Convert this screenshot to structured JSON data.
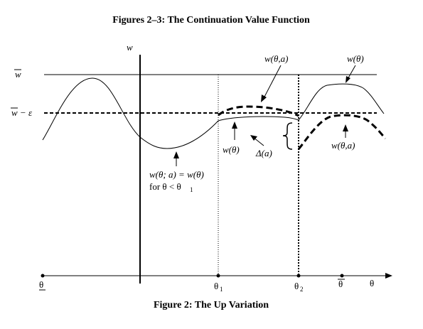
{
  "title": "Figures 2–3:  The Continuation Value Function",
  "caption": "Figure 2:  The Up Variation",
  "axes": {
    "y_axis_label": "w",
    "x_axis_label": "θ"
  },
  "levels": {
    "w_bar": "w",
    "w_bar_minus_eps": "w − ε"
  },
  "x_ticks": {
    "theta_lower": "θ",
    "theta_1_base": "θ",
    "theta_1_sub": "1",
    "theta_2_base": "θ",
    "theta_2_sub": "2",
    "theta_upper": "θ"
  },
  "annotations": {
    "w_theta_a_top": "w(θ,a)",
    "w_theta_top_right": "w(θ)",
    "w_theta_mid": "w(θ)",
    "delta_a": "Δ(a)",
    "w_theta_a_right": "w(θ,a)",
    "equality_line1": "w(θ; a) = w(θ)",
    "equality_line2_base": "for θ < θ",
    "equality_line2_sub": "1"
  }
}
